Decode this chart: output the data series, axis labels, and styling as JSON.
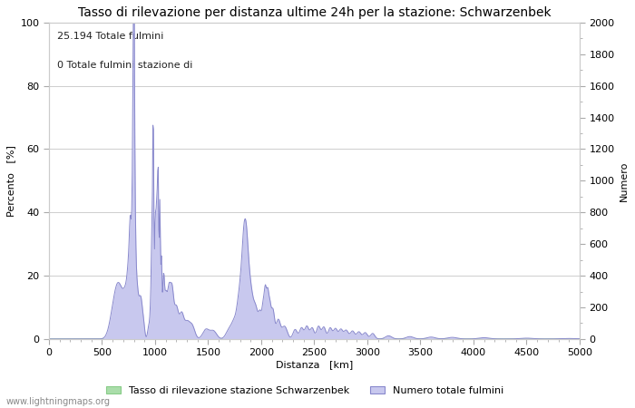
{
  "title": "Tasso di rilevazione per distanza ultime 24h per la stazione: Schwarzenbek",
  "xlabel": "Distanza   [km]",
  "ylabel_left": "Percento   [%]",
  "ylabel_right": "Numero",
  "annotation_line1": "25.194 Totale fulmini",
  "annotation_line2": "0 Totale fulmini stazione di",
  "xlim": [
    0,
    5000
  ],
  "ylim_left": [
    0,
    100
  ],
  "ylim_right": [
    0,
    2000
  ],
  "xticks": [
    0,
    500,
    1000,
    1500,
    2000,
    2500,
    3000,
    3500,
    4000,
    4500,
    5000
  ],
  "yticks_left": [
    0,
    20,
    40,
    60,
    80,
    100
  ],
  "yticks_right": [
    0,
    200,
    400,
    600,
    800,
    1000,
    1200,
    1400,
    1600,
    1800,
    2000
  ],
  "legend_label_green": "Tasso di rilevazione stazione Schwarzenbek",
  "legend_label_blue": "Numero totale fulmini",
  "fill_green_color": "#aaddaa",
  "fill_blue_color": "#c8c8ee",
  "line_blue_color": "#8888cc",
  "line_green_color": "#88cc88",
  "watermark": "www.lightningmaps.org",
  "background_color": "#ffffff",
  "grid_color": "#bbbbbb",
  "title_fontsize": 10,
  "axis_fontsize": 8,
  "tick_fontsize": 8,
  "annotation_fontsize": 8
}
